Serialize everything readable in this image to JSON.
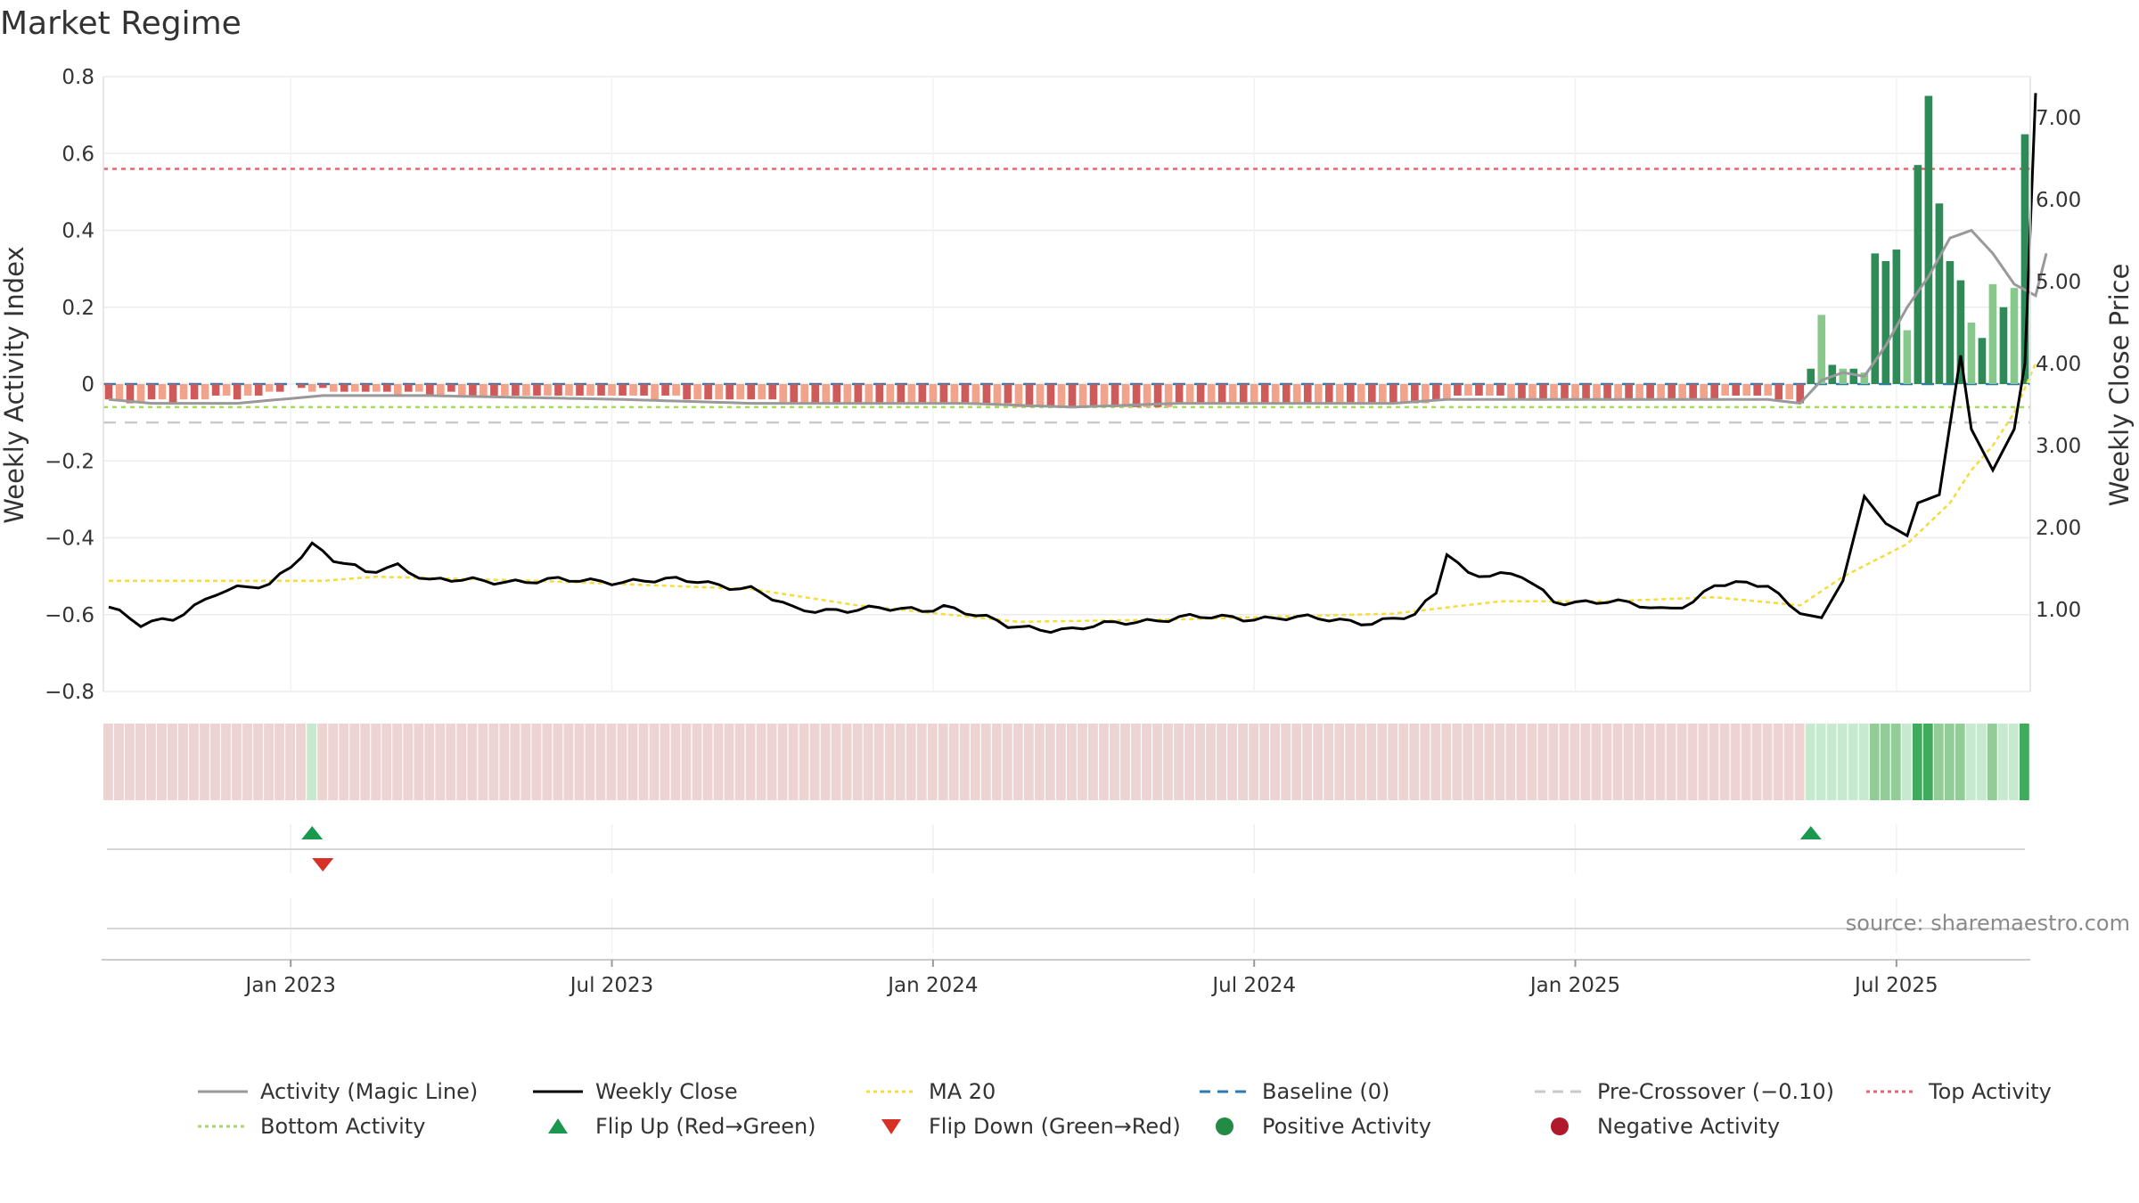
{
  "chart_data": {
    "type": "bar",
    "title": "Market Regime",
    "ylabel": "Weekly Activity Index",
    "y2label": "Weekly Close Price",
    "ylim": [
      -0.8,
      0.8
    ],
    "y2lim": [
      0.0,
      7.5
    ],
    "yticks": [
      "0.8",
      "0.6",
      "0.4",
      "0.2",
      "0",
      "−0.2",
      "−0.4",
      "−0.6",
      "−0.8"
    ],
    "yticks_values": [
      0.8,
      0.6,
      0.4,
      0.2,
      0,
      -0.2,
      -0.4,
      -0.6,
      -0.8
    ],
    "y2ticks": [
      "7.00",
      "6.00",
      "5.00",
      "4.00",
      "3.00",
      "2.00",
      "1.00"
    ],
    "y2ticks_values": [
      7,
      6,
      5,
      4,
      3,
      2,
      1
    ],
    "xticks": [
      "Jan 2023",
      "Jul 2023",
      "Jan 2024",
      "Jul 2024",
      "Jan 2025",
      "Jul 2025"
    ],
    "xticks_week_index": [
      17,
      47,
      77,
      107,
      137,
      167
    ],
    "week_count": 180,
    "weekly_close_anchors": [
      [
        0,
        1.03
      ],
      [
        3,
        0.8
      ],
      [
        6,
        0.9
      ],
      [
        10,
        1.2
      ],
      [
        15,
        1.3
      ],
      [
        19,
        1.8
      ],
      [
        21,
        1.6
      ],
      [
        24,
        1.45
      ],
      [
        27,
        1.55
      ],
      [
        30,
        1.35
      ],
      [
        40,
        1.35
      ],
      [
        48,
        1.35
      ],
      [
        55,
        1.35
      ],
      [
        60,
        1.25
      ],
      [
        64,
        1.0
      ],
      [
        70,
        1.0
      ],
      [
        76,
        1.0
      ],
      [
        78,
        1.05
      ],
      [
        84,
        0.8
      ],
      [
        90,
        0.75
      ],
      [
        95,
        0.85
      ],
      [
        100,
        0.9
      ],
      [
        110,
        0.9
      ],
      [
        118,
        0.85
      ],
      [
        122,
        0.92
      ],
      [
        124,
        1.2
      ],
      [
        125,
        1.7
      ],
      [
        127,
        1.45
      ],
      [
        132,
        1.4
      ],
      [
        135,
        1.1
      ],
      [
        140,
        1.1
      ],
      [
        145,
        1.0
      ],
      [
        148,
        1.1
      ],
      [
        150,
        1.3
      ],
      [
        155,
        1.3
      ],
      [
        158,
        0.95
      ],
      [
        160,
        0.9
      ],
      [
        162,
        1.35
      ],
      [
        164,
        2.38
      ],
      [
        166,
        2.05
      ],
      [
        168,
        1.9
      ],
      [
        169,
        2.3
      ],
      [
        171,
        2.4
      ],
      [
        173,
        4.1
      ],
      [
        174,
        3.2
      ],
      [
        176,
        2.7
      ],
      [
        178,
        3.2
      ],
      [
        179,
        4.0
      ],
      [
        180,
        7.3
      ]
    ],
    "ma20_anchors": [
      [
        0,
        1.35
      ],
      [
        20,
        1.35
      ],
      [
        25,
        1.4
      ],
      [
        40,
        1.35
      ],
      [
        60,
        1.25
      ],
      [
        70,
        1.05
      ],
      [
        85,
        0.85
      ],
      [
        100,
        0.88
      ],
      [
        120,
        0.95
      ],
      [
        130,
        1.1
      ],
      [
        140,
        1.1
      ],
      [
        150,
        1.15
      ],
      [
        158,
        1.05
      ],
      [
        162,
        1.4
      ],
      [
        168,
        1.8
      ],
      [
        172,
        2.3
      ],
      [
        174,
        2.7
      ],
      [
        176,
        3.0
      ],
      [
        178,
        3.4
      ],
      [
        180,
        4.0
      ]
    ],
    "activity_line_anchors": [
      [
        0,
        -0.04
      ],
      [
        4,
        -0.05
      ],
      [
        12,
        -0.05
      ],
      [
        16,
        -0.04
      ],
      [
        20,
        -0.03
      ],
      [
        30,
        -0.03
      ],
      [
        48,
        -0.04
      ],
      [
        60,
        -0.05
      ],
      [
        70,
        -0.05
      ],
      [
        80,
        -0.05
      ],
      [
        90,
        -0.06
      ],
      [
        100,
        -0.05
      ],
      [
        110,
        -0.05
      ],
      [
        120,
        -0.05
      ],
      [
        125,
        -0.04
      ],
      [
        140,
        -0.04
      ],
      [
        150,
        -0.04
      ],
      [
        155,
        -0.04
      ],
      [
        158,
        -0.05
      ],
      [
        160,
        0.01
      ],
      [
        162,
        0.03
      ],
      [
        164,
        0.02
      ],
      [
        166,
        0.1
      ],
      [
        168,
        0.2
      ],
      [
        170,
        0.28
      ],
      [
        172,
        0.38
      ],
      [
        174,
        0.4
      ],
      [
        176,
        0.34
      ],
      [
        178,
        0.26
      ],
      [
        180,
        0.23
      ],
      [
        181,
        0.34
      ]
    ],
    "histogram_bars": [
      {
        "week": 0,
        "value": -0.04
      },
      {
        "week": 1,
        "value": -0.04
      },
      {
        "week": 2,
        "value": -0.05
      },
      {
        "week": 3,
        "value": -0.05
      },
      {
        "week": 4,
        "value": -0.04
      },
      {
        "week": 5,
        "value": -0.04
      },
      {
        "week": 6,
        "value": -0.05
      },
      {
        "week": 7,
        "value": -0.04
      },
      {
        "week": 8,
        "value": -0.04
      },
      {
        "week": 9,
        "value": -0.04
      },
      {
        "week": 10,
        "value": -0.03
      },
      {
        "week": 11,
        "value": -0.03
      },
      {
        "week": 12,
        "value": -0.04
      },
      {
        "week": 13,
        "value": -0.03
      },
      {
        "week": 14,
        "value": -0.03
      },
      {
        "week": 15,
        "value": -0.02
      },
      {
        "week": 16,
        "value": -0.02
      },
      {
        "week": 18,
        "value": -0.01
      },
      {
        "week": 19,
        "value": -0.02
      },
      {
        "week": 20,
        "value": -0.01
      },
      {
        "week": 21,
        "value": -0.02
      },
      {
        "week": 22,
        "value": -0.02
      },
      {
        "week": 23,
        "value": -0.02
      },
      {
        "week": 24,
        "value": -0.02
      },
      {
        "week": 25,
        "value": -0.02
      },
      {
        "week": 26,
        "value": -0.02
      },
      {
        "week": 27,
        "value": -0.03
      },
      {
        "week": 28,
        "value": -0.02
      },
      {
        "week": 29,
        "value": -0.02
      },
      {
        "week": 30,
        "value": -0.03
      },
      {
        "week": 31,
        "value": -0.03
      },
      {
        "week": 32,
        "value": -0.02
      },
      {
        "week": 33,
        "value": -0.03
      },
      {
        "week": 34,
        "value": -0.03
      },
      {
        "week": 35,
        "value": -0.03
      },
      {
        "week": 36,
        "value": -0.03
      },
      {
        "week": 37,
        "value": -0.03
      },
      {
        "week": 38,
        "value": -0.03
      },
      {
        "week": 39,
        "value": -0.03
      },
      {
        "week": 40,
        "value": -0.03
      },
      {
        "week": 41,
        "value": -0.03
      },
      {
        "week": 42,
        "value": -0.03
      },
      {
        "week": 43,
        "value": -0.03
      },
      {
        "week": 44,
        "value": -0.03
      },
      {
        "week": 45,
        "value": -0.03
      },
      {
        "week": 46,
        "value": -0.03
      },
      {
        "week": 47,
        "value": -0.03
      },
      {
        "week": 48,
        "value": -0.03
      },
      {
        "week": 49,
        "value": -0.03
      },
      {
        "week": 50,
        "value": -0.03
      },
      {
        "week": 51,
        "value": -0.04
      },
      {
        "week": 52,
        "value": -0.03
      },
      {
        "week": 53,
        "value": -0.03
      },
      {
        "week": 54,
        "value": -0.04
      },
      {
        "week": 55,
        "value": -0.04
      },
      {
        "week": 56,
        "value": -0.04
      },
      {
        "week": 57,
        "value": -0.04
      },
      {
        "week": 58,
        "value": -0.04
      },
      {
        "week": 59,
        "value": -0.04
      },
      {
        "week": 60,
        "value": -0.04
      },
      {
        "week": 61,
        "value": -0.04
      },
      {
        "week": 62,
        "value": -0.04
      },
      {
        "week": 63,
        "value": -0.05
      },
      {
        "week": 64,
        "value": -0.05
      },
      {
        "week": 65,
        "value": -0.05
      },
      {
        "week": 66,
        "value": -0.05
      },
      {
        "week": 67,
        "value": -0.05
      },
      {
        "week": 68,
        "value": -0.05
      },
      {
        "week": 69,
        "value": -0.05
      },
      {
        "week": 70,
        "value": -0.05
      },
      {
        "week": 71,
        "value": -0.05
      },
      {
        "week": 72,
        "value": -0.05
      },
      {
        "week": 73,
        "value": -0.05
      },
      {
        "week": 74,
        "value": -0.05
      },
      {
        "week": 75,
        "value": -0.05
      },
      {
        "week": 76,
        "value": -0.05
      },
      {
        "week": 77,
        "value": -0.05
      },
      {
        "week": 78,
        "value": -0.05
      },
      {
        "week": 79,
        "value": -0.05
      },
      {
        "week": 80,
        "value": -0.05
      },
      {
        "week": 81,
        "value": -0.05
      },
      {
        "week": 82,
        "value": -0.05
      },
      {
        "week": 83,
        "value": -0.05
      },
      {
        "week": 84,
        "value": -0.05
      },
      {
        "week": 85,
        "value": -0.06
      },
      {
        "week": 86,
        "value": -0.06
      },
      {
        "week": 87,
        "value": -0.06
      },
      {
        "week": 88,
        "value": -0.06
      },
      {
        "week": 89,
        "value": -0.06
      },
      {
        "week": 90,
        "value": -0.06
      },
      {
        "week": 91,
        "value": -0.06
      },
      {
        "week": 92,
        "value": -0.06
      },
      {
        "week": 93,
        "value": -0.06
      },
      {
        "week": 94,
        "value": -0.06
      },
      {
        "week": 95,
        "value": -0.06
      },
      {
        "week": 96,
        "value": -0.06
      },
      {
        "week": 97,
        "value": -0.06
      },
      {
        "week": 98,
        "value": -0.06
      },
      {
        "week": 99,
        "value": -0.06
      },
      {
        "week": 100,
        "value": -0.05
      },
      {
        "week": 101,
        "value": -0.05
      },
      {
        "week": 102,
        "value": -0.05
      },
      {
        "week": 103,
        "value": -0.05
      },
      {
        "week": 104,
        "value": -0.05
      },
      {
        "week": 105,
        "value": -0.05
      },
      {
        "week": 106,
        "value": -0.05
      },
      {
        "week": 107,
        "value": -0.05
      },
      {
        "week": 108,
        "value": -0.05
      },
      {
        "week": 109,
        "value": -0.05
      },
      {
        "week": 110,
        "value": -0.05
      },
      {
        "week": 111,
        "value": -0.05
      },
      {
        "week": 112,
        "value": -0.05
      },
      {
        "week": 113,
        "value": -0.05
      },
      {
        "week": 114,
        "value": -0.05
      },
      {
        "week": 115,
        "value": -0.05
      },
      {
        "week": 116,
        "value": -0.05
      },
      {
        "week": 117,
        "value": -0.05
      },
      {
        "week": 118,
        "value": -0.05
      },
      {
        "week": 119,
        "value": -0.05
      },
      {
        "week": 120,
        "value": -0.05
      },
      {
        "week": 121,
        "value": -0.05
      },
      {
        "week": 122,
        "value": -0.05
      },
      {
        "week": 123,
        "value": -0.05
      },
      {
        "week": 124,
        "value": -0.04
      },
      {
        "week": 125,
        "value": -0.04
      },
      {
        "week": 126,
        "value": -0.03
      },
      {
        "week": 127,
        "value": -0.03
      },
      {
        "week": 128,
        "value": -0.03
      },
      {
        "week": 129,
        "value": -0.03
      },
      {
        "week": 130,
        "value": -0.03
      },
      {
        "week": 131,
        "value": -0.04
      },
      {
        "week": 132,
        "value": -0.04
      },
      {
        "week": 133,
        "value": -0.04
      },
      {
        "week": 134,
        "value": -0.04
      },
      {
        "week": 135,
        "value": -0.04
      },
      {
        "week": 136,
        "value": -0.04
      },
      {
        "week": 137,
        "value": -0.04
      },
      {
        "week": 138,
        "value": -0.04
      },
      {
        "week": 139,
        "value": -0.04
      },
      {
        "week": 140,
        "value": -0.04
      },
      {
        "week": 141,
        "value": -0.04
      },
      {
        "week": 142,
        "value": -0.04
      },
      {
        "week": 143,
        "value": -0.04
      },
      {
        "week": 144,
        "value": -0.04
      },
      {
        "week": 145,
        "value": -0.04
      },
      {
        "week": 146,
        "value": -0.04
      },
      {
        "week": 147,
        "value": -0.04
      },
      {
        "week": 148,
        "value": -0.04
      },
      {
        "week": 149,
        "value": -0.04
      },
      {
        "week": 150,
        "value": -0.04
      },
      {
        "week": 151,
        "value": -0.03
      },
      {
        "week": 152,
        "value": -0.03
      },
      {
        "week": 153,
        "value": -0.03
      },
      {
        "week": 154,
        "value": -0.03
      },
      {
        "week": 155,
        "value": -0.03
      },
      {
        "week": 156,
        "value": -0.04
      },
      {
        "week": 157,
        "value": -0.04
      },
      {
        "week": 158,
        "value": -0.05
      },
      {
        "week": 159,
        "value": 0.04
      },
      {
        "week": 160,
        "value": 0.18
      },
      {
        "week": 161,
        "value": 0.05
      },
      {
        "week": 162,
        "value": 0.04
      },
      {
        "week": 163,
        "value": 0.04
      },
      {
        "week": 164,
        "value": 0.03
      },
      {
        "week": 165,
        "value": 0.34
      },
      {
        "week": 166,
        "value": 0.32
      },
      {
        "week": 167,
        "value": 0.35
      },
      {
        "week": 168,
        "value": 0.14
      },
      {
        "week": 169,
        "value": 0.57
      },
      {
        "week": 170,
        "value": 0.75
      },
      {
        "week": 171,
        "value": 0.47
      },
      {
        "week": 172,
        "value": 0.32
      },
      {
        "week": 173,
        "value": 0.27
      },
      {
        "week": 174,
        "value": 0.16
      },
      {
        "week": 175,
        "value": 0.12
      },
      {
        "week": 176,
        "value": 0.26
      },
      {
        "week": 177,
        "value": 0.2
      },
      {
        "week": 178,
        "value": 0.25
      },
      {
        "week": 179,
        "value": 0.65
      }
    ],
    "regime_strip": {
      "red_until_week": 158,
      "green_from_week": 159,
      "flip_green_week": 19
    },
    "flip_up_markers": [
      {
        "week": 19
      },
      {
        "week": 159
      }
    ],
    "flip_down_markers": [
      {
        "week": 20
      }
    ],
    "reference_lines": {
      "baseline": 0,
      "pre_crossover": -0.1,
      "top_activity": 0.56,
      "bottom_activity": -0.06
    },
    "colors": {
      "activity_line": "#999999",
      "weekly_close": "#000000",
      "ma20": "#f5dc3c",
      "baseline": "#2a7ab6",
      "pre_crossover": "#c9c9c9",
      "top_activity": "#e06672",
      "bottom_activity": "#a6d96a",
      "flip_up": "#1a9850",
      "flip_down": "#d73027",
      "positive": "#238b45",
      "negative": "#b2182b",
      "neg_dark": "#cf5a5a",
      "neg_light": "#f2a38c",
      "pos_dark": "#2e8b57",
      "pos_light": "#86c98a",
      "strip_red": "#edd3d1",
      "strip_green_light": "#c7e9cf",
      "strip_green_mid": "#92cd98",
      "strip_green_dark": "#41ab5d"
    },
    "legend": [
      {
        "label": "Activity (Magic Line)",
        "type": "line",
        "color": "#999999",
        "dash": ""
      },
      {
        "label": "Weekly Close",
        "type": "line",
        "color": "#000000",
        "dash": ""
      },
      {
        "label": "MA 20",
        "type": "line",
        "color": "#f5dc3c",
        "dash": "4 4"
      },
      {
        "label": "Baseline (0)",
        "type": "line",
        "color": "#2a7ab6",
        "dash": "12 8"
      },
      {
        "label": "Pre-Crossover (−0.10)",
        "type": "line",
        "color": "#c9c9c9",
        "dash": "12 8"
      },
      {
        "label": "Top Activity",
        "type": "line",
        "color": "#e06672",
        "dash": "4 4"
      },
      {
        "label": "Bottom Activity",
        "type": "line",
        "color": "#a6d96a",
        "dash": "4 4"
      },
      {
        "label": "Flip Up (Red→Green)",
        "type": "up",
        "color": "#1a9850",
        "dash": ""
      },
      {
        "label": "Flip Down (Green→Red)",
        "type": "down",
        "color": "#d73027",
        "dash": ""
      },
      {
        "label": "Positive Activity",
        "type": "dot",
        "color": "#238b45",
        "dash": ""
      },
      {
        "label": "Negative Activity",
        "type": "dot",
        "color": "#b2182b",
        "dash": ""
      }
    ],
    "source": "source: sharemaestro.com"
  }
}
